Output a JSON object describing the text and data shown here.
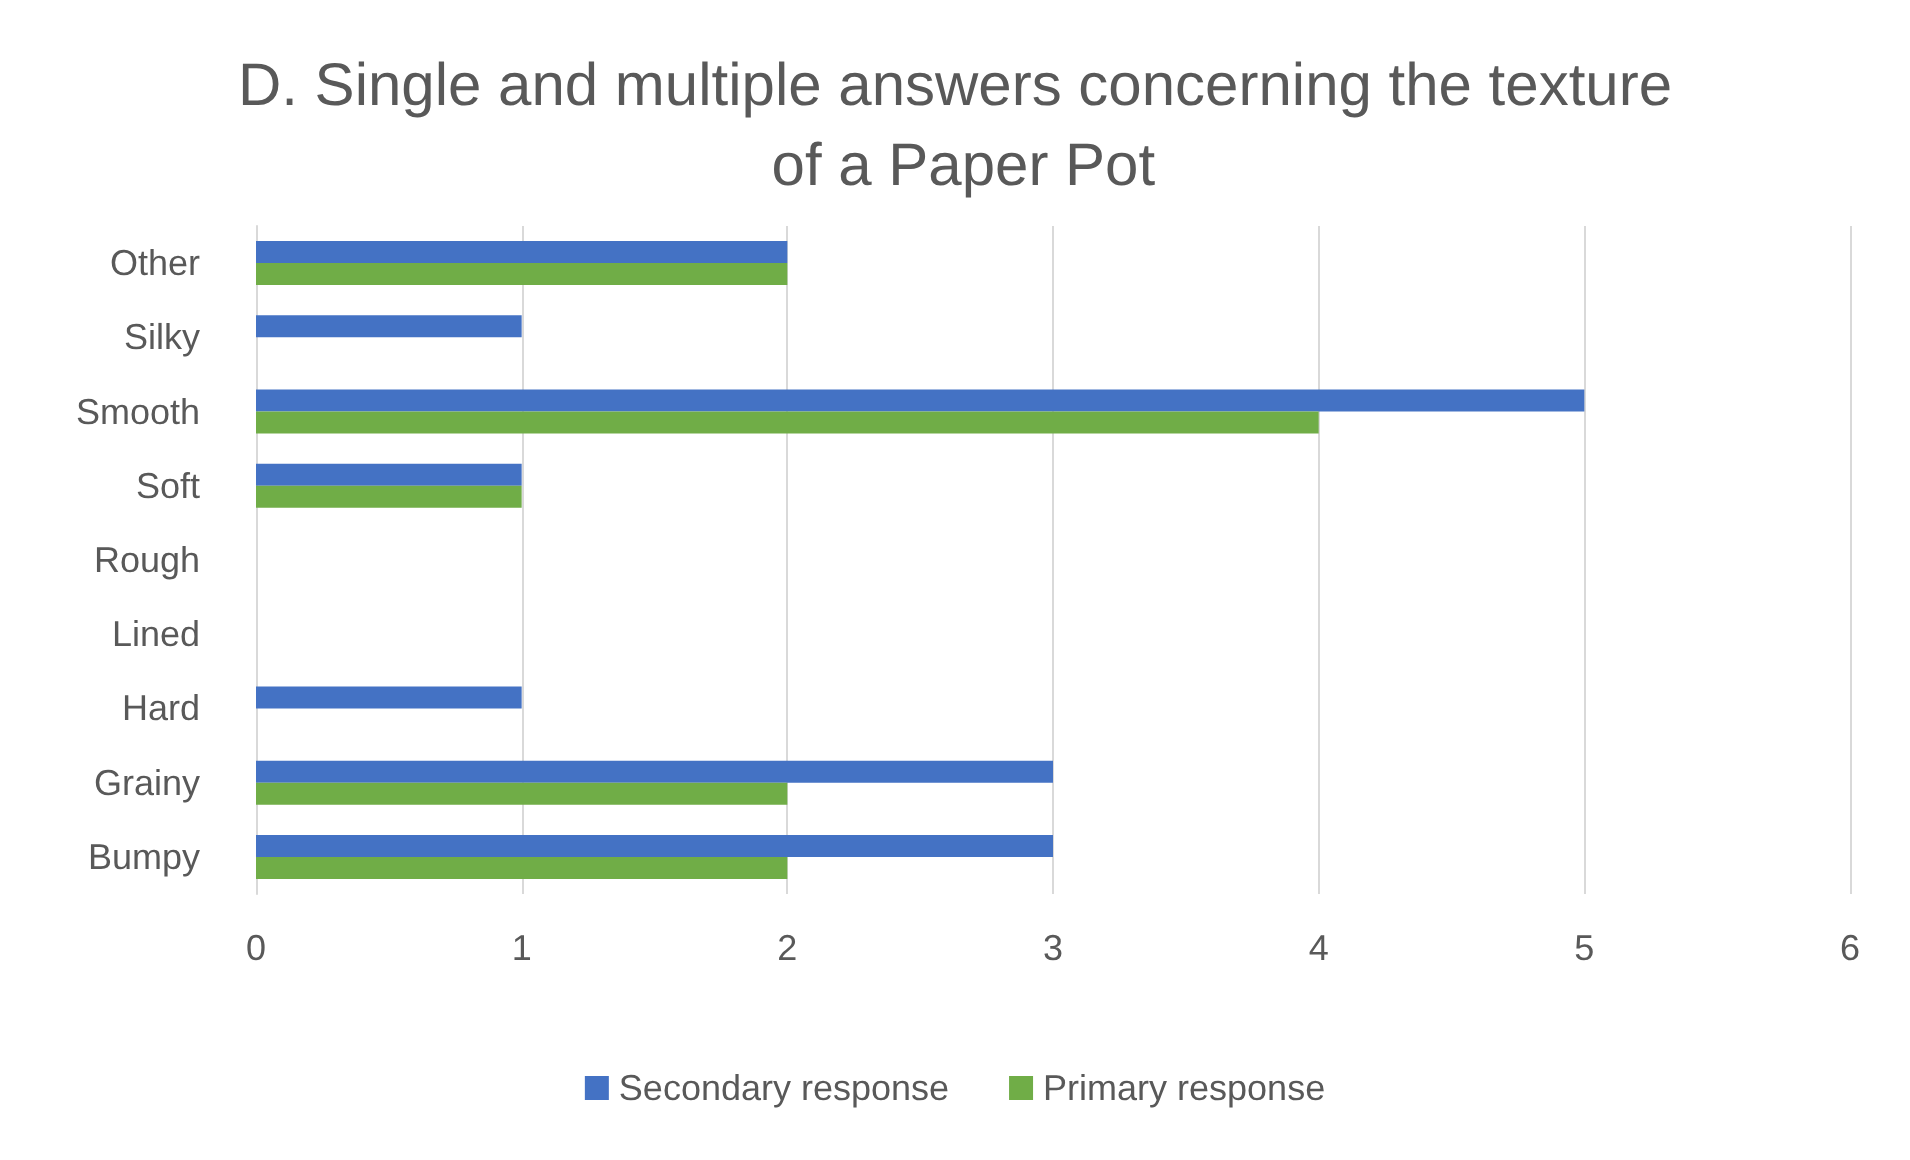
{
  "chart_data": {
    "type": "bar",
    "orientation": "horizontal",
    "title": "D. Single and multiple answers concerning the texture of a Paper Pot",
    "categories": [
      "Other",
      "Silky",
      "Smooth",
      "Soft",
      "Rough",
      "Lined",
      "Hard",
      "Grainy",
      "Bumpy"
    ],
    "series": [
      {
        "name": "Secondary response",
        "color": "#4472c4",
        "values": [
          2,
          1,
          5,
          1,
          0,
          0,
          1,
          3,
          3
        ]
      },
      {
        "name": "Primary response",
        "color": "#70ad47",
        "values": [
          2,
          0,
          4,
          1,
          0,
          0,
          0,
          2,
          2
        ]
      }
    ],
    "xlim": [
      0,
      6
    ],
    "xticks": [
      0,
      1,
      2,
      3,
      4,
      5,
      6
    ],
    "grid": "x",
    "legend": "bottom"
  }
}
